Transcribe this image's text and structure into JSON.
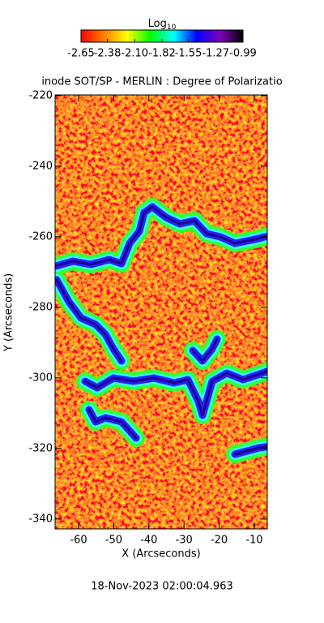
{
  "chart_data": {
    "type": "image",
    "title": "inode SOT/SP - MERLIN : Degree of Polarizatio",
    "x_label": "X (Arcseconds)",
    "y_label": "Y (Arcseconds)",
    "xlim": [
      -66.7,
      -6.3
    ],
    "xticks": [
      -60,
      -50,
      -40,
      -30,
      -20,
      -10
    ],
    "ylim": [
      -342.8,
      -219.8
    ],
    "yticks": [
      -340,
      -320,
      -300,
      -280,
      -260,
      -240,
      -220
    ],
    "colorbar": {
      "label": "Log",
      "label_subscript": "10",
      "clim": [
        -2.65,
        -0.99
      ],
      "ticks": [
        -2.65,
        -2.38,
        {
          "value": -2.1,
          "label": "-2.10"
        },
        -1.82,
        -1.55,
        -1.27,
        -0.99
      ],
      "colors": [
        "#ff0000",
        "#ff8000",
        "#ffff00",
        "#00ff00",
        "#00ffff",
        "#0000ff",
        "#8000c0",
        "#000000"
      ]
    },
    "date": "18-Nov-2023 02:00:04.963"
  }
}
